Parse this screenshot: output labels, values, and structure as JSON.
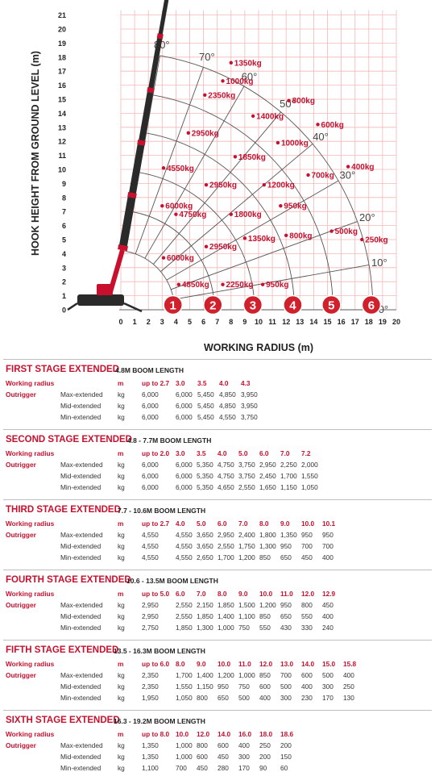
{
  "chart_data": {
    "type": "load-chart",
    "ylabel": "HOOK HEIGHT FROM GROUND LEVEL (m)",
    "xlabel": "WORKING RADIUS (m)",
    "x_ticks": [
      0,
      1,
      2,
      3,
      4,
      5,
      6,
      7,
      8,
      9,
      10,
      11,
      12,
      13,
      14,
      15,
      16,
      17,
      18,
      19,
      20
    ],
    "y_ticks": [
      0,
      1,
      2,
      3,
      4,
      5,
      6,
      7,
      8,
      9,
      10,
      11,
      12,
      13,
      14,
      15,
      16,
      17,
      18,
      19,
      20,
      21
    ],
    "xlim": [
      0,
      20
    ],
    "ylim": [
      0,
      21
    ],
    "grid": true,
    "angles": [
      {
        "label": "80°",
        "deg": 80
      },
      {
        "label": "70°",
        "deg": 70
      },
      {
        "label": "60°",
        "deg": 60
      },
      {
        "label": "50°",
        "deg": 50
      },
      {
        "label": "40°",
        "deg": 40
      },
      {
        "label": "30°",
        "deg": 30
      },
      {
        "label": "20°",
        "deg": 20
      },
      {
        "label": "10°",
        "deg": 10
      },
      {
        "label": "0°",
        "deg": 0
      }
    ],
    "stages": [
      {
        "label": "1",
        "radius": 3.9
      },
      {
        "label": "2",
        "radius": 6.8
      },
      {
        "label": "3",
        "radius": 9.7
      },
      {
        "label": "4",
        "radius": 12.6
      },
      {
        "label": "5",
        "radius": 15.4
      },
      {
        "label": "6",
        "radius": 18.3
      }
    ],
    "load_labels": [
      {
        "text": "1350kg",
        "x": 8.0,
        "y": 17.6
      },
      {
        "text": "1000kg",
        "x": 7.4,
        "y": 16.3
      },
      {
        "text": "2350kg",
        "x": 6.1,
        "y": 15.3
      },
      {
        "text": "800kg",
        "x": 12.2,
        "y": 14.9
      },
      {
        "text": "1400kg",
        "x": 9.6,
        "y": 13.8
      },
      {
        "text": "600kg",
        "x": 14.3,
        "y": 13.2
      },
      {
        "text": "2950kg",
        "x": 4.9,
        "y": 12.6
      },
      {
        "text": "1000kg",
        "x": 11.4,
        "y": 11.9
      },
      {
        "text": "1850kg",
        "x": 8.3,
        "y": 10.9
      },
      {
        "text": "400kg",
        "x": 16.5,
        "y": 10.2
      },
      {
        "text": "4550kg",
        "x": 3.1,
        "y": 10.1
      },
      {
        "text": "700kg",
        "x": 13.6,
        "y": 9.6
      },
      {
        "text": "2950kg",
        "x": 6.2,
        "y": 8.9
      },
      {
        "text": "1200kg",
        "x": 10.4,
        "y": 8.9
      },
      {
        "text": "6000kg",
        "x": 3.0,
        "y": 7.4
      },
      {
        "text": "950kg",
        "x": 11.6,
        "y": 7.4
      },
      {
        "text": "4750kg",
        "x": 4.0,
        "y": 6.8
      },
      {
        "text": "1800kg",
        "x": 8.0,
        "y": 6.8
      },
      {
        "text": "500kg",
        "x": 15.3,
        "y": 5.6
      },
      {
        "text": "800kg",
        "x": 12.0,
        "y": 5.3
      },
      {
        "text": "1350kg",
        "x": 9.0,
        "y": 5.1
      },
      {
        "text": "250kg",
        "x": 17.5,
        "y": 5.0
      },
      {
        "text": "2950kg",
        "x": 6.2,
        "y": 4.5
      },
      {
        "text": "6000kg",
        "x": 3.1,
        "y": 3.7
      },
      {
        "text": "4850kg",
        "x": 4.2,
        "y": 1.8
      },
      {
        "text": "2250kg",
        "x": 7.4,
        "y": 1.8
      },
      {
        "text": "950kg",
        "x": 10.3,
        "y": 1.8
      }
    ]
  },
  "tables": [
    {
      "title": "FIRST STAGE EXTENDED",
      "subtitle": "4.8M BOOM LENGTH",
      "radius_label": "Working radius",
      "unit_m": "m",
      "outrigger_label": "Outrigger",
      "unit_kg": "kg",
      "radii": [
        "up to 2.7",
        "3.0",
        "3.5",
        "4.0",
        "4.3"
      ],
      "rows": [
        {
          "name": "Max-extended",
          "values": [
            "6,000",
            "6,000",
            "5,450",
            "4,850",
            "3,950"
          ]
        },
        {
          "name": "Mid-extended",
          "values": [
            "6,000",
            "6,000",
            "5,450",
            "4,850",
            "3,950"
          ]
        },
        {
          "name": "Min-extended",
          "values": [
            "6,000",
            "6,000",
            "5,450",
            "4,550",
            "3,750"
          ]
        }
      ]
    },
    {
      "title": "SECOND STAGE EXTENDED",
      "subtitle": "4.8 - 7.7M BOOM LENGTH",
      "radius_label": "Working radius",
      "unit_m": "m",
      "outrigger_label": "Outrigger",
      "unit_kg": "kg",
      "radii": [
        "up to 2.0",
        "3.0",
        "3.5",
        "4.0",
        "5.0",
        "6.0",
        "7.0",
        "7.2"
      ],
      "rows": [
        {
          "name": "Max-extended",
          "values": [
            "6,000",
            "6,000",
            "5,350",
            "4,750",
            "3,750",
            "2,950",
            "2,250",
            "2,000"
          ]
        },
        {
          "name": "Mid-extended",
          "values": [
            "6,000",
            "6,000",
            "5,350",
            "4,750",
            "3,750",
            "2,450",
            "1,700",
            "1,550"
          ]
        },
        {
          "name": "Min-extended",
          "values": [
            "6,000",
            "6,000",
            "5,350",
            "4,650",
            "2,550",
            "1,650",
            "1,150",
            "1,050"
          ]
        }
      ]
    },
    {
      "title": "THIRD STAGE EXTENDED",
      "subtitle": "7.7 - 10.6M BOOM LENGTH",
      "radius_label": "Working radius",
      "unit_m": "m",
      "outrigger_label": "Outrigger",
      "unit_kg": "kg",
      "radii": [
        "up to 2.7",
        "4.0",
        "5.0",
        "6.0",
        "7.0",
        "8.0",
        "9.0",
        "10.0",
        "10.1"
      ],
      "rows": [
        {
          "name": "Max-extended",
          "values": [
            "4,550",
            "4,550",
            "3,650",
            "2,950",
            "2,400",
            "1,800",
            "1,350",
            "950",
            "950"
          ]
        },
        {
          "name": "Mid-extended",
          "values": [
            "4,550",
            "4,550",
            "3,650",
            "2,550",
            "1,750",
            "1,300",
            "950",
            "700",
            "700"
          ]
        },
        {
          "name": "Min-extended",
          "values": [
            "4,550",
            "4,550",
            "2,650",
            "1,700",
            "1,200",
            "850",
            "650",
            "450",
            "400"
          ]
        }
      ]
    },
    {
      "title": "FOURTH STAGE EXTENDED",
      "subtitle": "10.6 - 13.5M BOOM LENGTH",
      "radius_label": "Working radius",
      "unit_m": "m",
      "outrigger_label": "Outrigger",
      "unit_kg": "kg",
      "radii": [
        "up to 5.0",
        "6.0",
        "7.0",
        "8.0",
        "9.0",
        "10.0",
        "11.0",
        "12.0",
        "12.9"
      ],
      "rows": [
        {
          "name": "Max-extended",
          "values": [
            "2,950",
            "2,550",
            "2,150",
            "1,850",
            "1,500",
            "1,200",
            "950",
            "800",
            "450"
          ]
        },
        {
          "name": "Mid-extended",
          "values": [
            "2,950",
            "2,550",
            "1,850",
            "1,400",
            "1,100",
            "850",
            "650",
            "550",
            "400"
          ]
        },
        {
          "name": "Min-extended",
          "values": [
            "2,750",
            "1,850",
            "1,300",
            "1,000",
            "750",
            "550",
            "430",
            "330",
            "240"
          ]
        }
      ]
    },
    {
      "title": "FIFTH STAGE EXTENDED",
      "subtitle": "13.5 - 16.3M BOOM LENGTH",
      "radius_label": "Working radius",
      "unit_m": "m",
      "outrigger_label": "Outrigger",
      "unit_kg": "kg",
      "radii": [
        "up to 6.0",
        "8.0",
        "9.0",
        "10.0",
        "11.0",
        "12.0",
        "13.0",
        "14.0",
        "15.0",
        "15.8"
      ],
      "rows": [
        {
          "name": "Max-extended",
          "values": [
            "2,350",
            "1,700",
            "1,400",
            "1,200",
            "1,000",
            "850",
            "700",
            "600",
            "500",
            "400"
          ]
        },
        {
          "name": "Mid-extended",
          "values": [
            "2,350",
            "1,550",
            "1,150",
            "950",
            "750",
            "600",
            "500",
            "400",
            "300",
            "250"
          ]
        },
        {
          "name": "Min-extended",
          "values": [
            "1,950",
            "1,050",
            "800",
            "650",
            "500",
            "400",
            "300",
            "230",
            "170",
            "130"
          ]
        }
      ]
    },
    {
      "title": "SIXTH STAGE EXTENDED",
      "subtitle": "16.3 - 19.2M BOOM LENGTH",
      "radius_label": "Working radius",
      "unit_m": "m",
      "outrigger_label": "Outrigger",
      "unit_kg": "kg",
      "radii": [
        "up to 8.0",
        "10.0",
        "12.0",
        "14.0",
        "16.0",
        "18.0",
        "18.6"
      ],
      "rows": [
        {
          "name": "Max-extended",
          "values": [
            "1,350",
            "1,000",
            "800",
            "600",
            "400",
            "250",
            "200"
          ]
        },
        {
          "name": "Mid-extended",
          "values": [
            "1,350",
            "1,000",
            "600",
            "450",
            "300",
            "200",
            "150"
          ]
        },
        {
          "name": "Min-extended",
          "values": [
            "1,100",
            "700",
            "450",
            "280",
            "170",
            "90",
            "60"
          ]
        }
      ]
    }
  ]
}
